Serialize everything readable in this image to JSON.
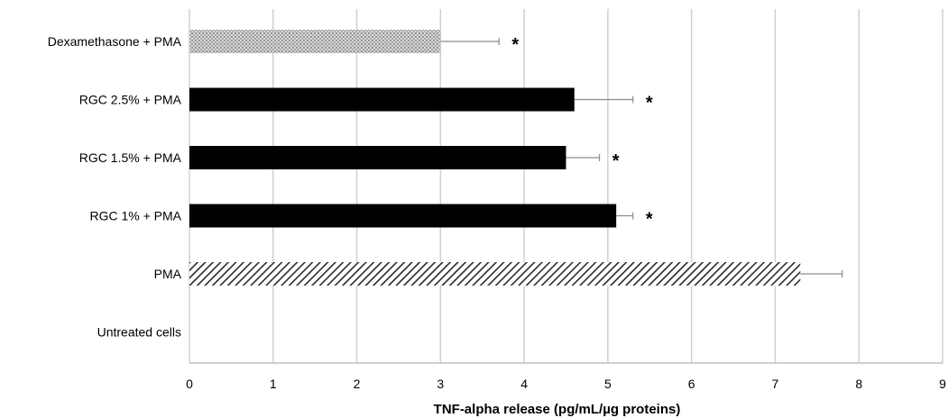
{
  "chart_data": {
    "type": "bar",
    "orientation": "horizontal",
    "categories": [
      "Dexamethasone + PMA",
      "RGC 2.5% + PMA",
      "RGC 1.5% + PMA",
      "RGC 1% + PMA",
      "PMA",
      "Untreated cells"
    ],
    "values": [
      3.0,
      4.6,
      4.5,
      5.1,
      7.3,
      0.0
    ],
    "errors": [
      0.7,
      0.7,
      0.4,
      0.2,
      0.5,
      0.0
    ],
    "significance": [
      "*",
      "*",
      "*",
      "*",
      "",
      ""
    ],
    "fills": [
      "dots",
      "solid",
      "solid",
      "solid",
      "hatch",
      "solid"
    ],
    "xlabel": "TNF-alpha release (pg/mL/µg proteins)",
    "xlim": [
      0,
      9
    ],
    "xticks": [
      "0",
      "1",
      "2",
      "3",
      "4",
      "5",
      "6",
      "7",
      "8",
      "9"
    ],
    "grid": true,
    "colors": {
      "bar": "#000000",
      "grid": "#d0d0d0",
      "axis": "#bfbfbf",
      "error": "#8c8c8c"
    }
  }
}
